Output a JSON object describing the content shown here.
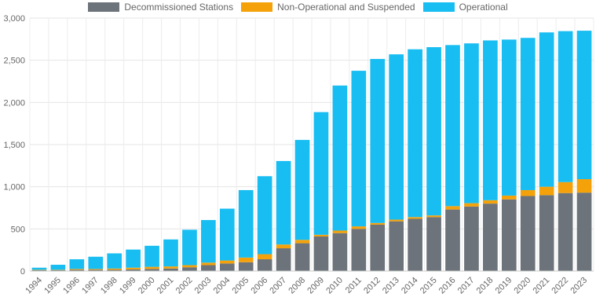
{
  "chart_data": {
    "type": "bar",
    "stacked": true,
    "categories": [
      "1994",
      "1995",
      "1996",
      "1997",
      "1998",
      "1999",
      "2000",
      "2001",
      "2002",
      "2003",
      "2004",
      "2005",
      "2006",
      "2007",
      "2008",
      "2009",
      "2010",
      "2011",
      "2012",
      "2013",
      "2014",
      "2015",
      "2016",
      "2017",
      "2018",
      "2019",
      "2020",
      "2021",
      "2022",
      "2023"
    ],
    "series": [
      {
        "name": "Decommissioned Stations",
        "color": "#6c737a",
        "values": [
          10,
          10,
          15,
          15,
          15,
          20,
          25,
          30,
          45,
          70,
          90,
          105,
          140,
          270,
          330,
          410,
          450,
          500,
          550,
          590,
          620,
          640,
          730,
          765,
          800,
          850,
          890,
          900,
          925,
          930
        ]
      },
      {
        "name": "Non-Operational and Suspended",
        "color": "#f5a20a",
        "values": [
          5,
          5,
          10,
          10,
          15,
          20,
          25,
          25,
          25,
          30,
          35,
          55,
          60,
          45,
          40,
          20,
          30,
          30,
          20,
          20,
          20,
          20,
          40,
          40,
          40,
          45,
          70,
          100,
          130,
          160
        ]
      },
      {
        "name": "Operational",
        "color": "#18bdf2",
        "values": [
          25,
          60,
          115,
          145,
          180,
          215,
          250,
          320,
          420,
          505,
          615,
          800,
          925,
          990,
          1185,
          1455,
          1720,
          1845,
          1945,
          1960,
          1990,
          1995,
          1910,
          1895,
          1895,
          1850,
          1805,
          1830,
          1790,
          1760
        ]
      }
    ],
    "ylim": [
      0,
      3000
    ],
    "yticks": [
      "0",
      "500",
      "1,000",
      "1,500",
      "2,000",
      "2,500",
      "3,000"
    ],
    "grid": true,
    "legend": "top-center"
  }
}
